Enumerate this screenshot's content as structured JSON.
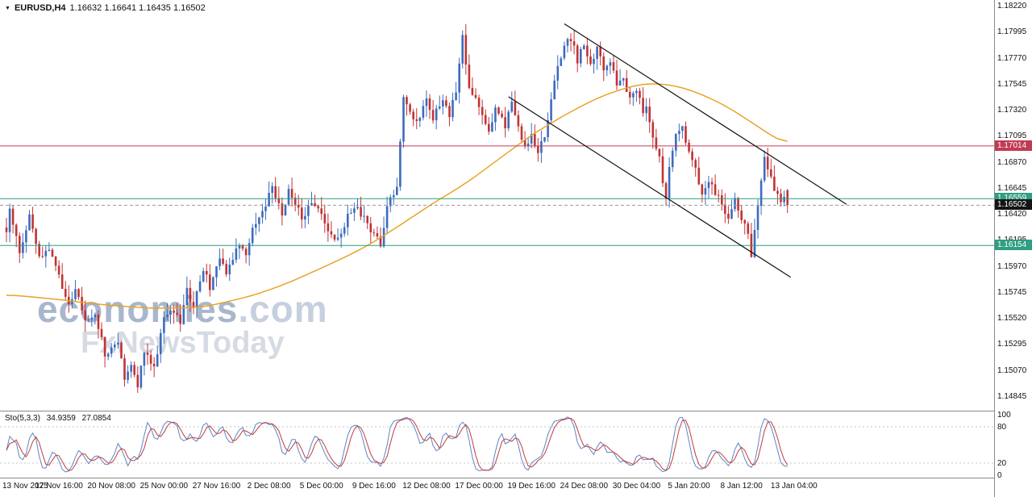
{
  "header": {
    "dropdown_icon": "▼",
    "symbol": "EURUSD,H4",
    "ohlc_text": "1.16632 1.16641 1.16435 1.16502"
  },
  "watermark": {
    "line1_main": "economies",
    "line1_suffix": ".com",
    "line2": "FxNewsToday"
  },
  "colors": {
    "bull": "#3d6bbf",
    "bear": "#c23333",
    "ma": "#e8a326",
    "resistance": "#c13b54",
    "support": "#2f9e83",
    "current_chip": "#141414",
    "current_line": "#999999",
    "trend": "#111111",
    "stoch_k": "#5c86c5",
    "stoch_d": "#c23b3b",
    "watermark_main": "#a8b7cd",
    "watermark_suffix": "#c6d0de",
    "watermark_sub": "#d6dbe3",
    "axis_text": "#111111",
    "separator": "#8a8a8a"
  },
  "chart_data": {
    "type": "candlestick",
    "symbol": "EURUSD",
    "timeframe": "H4",
    "current_ohlc": {
      "open": 1.16632,
      "high": 1.16641,
      "low": 1.16435,
      "close": 1.16502
    },
    "y_axis": {
      "price_top": 1.1822,
      "price_bottom": 1.14845,
      "ticks": [
        "1.18220",
        "1.17995",
        "1.17770",
        "1.17545",
        "1.17320",
        "1.17095",
        "1.16870",
        "1.16645",
        "1.16420",
        "1.16195",
        "1.15970",
        "1.15745",
        "1.15520",
        "1.15295",
        "1.15070",
        "1.14845"
      ]
    },
    "x_axis": {
      "candles_per_tick": 16,
      "tick_labels": [
        "13 Nov 2025",
        "17 Nov 16:00",
        "20 Nov 08:00",
        "25 Nov 00:00",
        "27 Nov 16:00",
        "2 Dec 08:00",
        "5 Dec 00:00",
        "9 Dec 16:00",
        "12 Dec 08:00",
        "17 Dec 00:00",
        "19 Dec 16:00",
        "24 Dec 08:00",
        "30 Dec 04:00",
        "5 Jan 20:00",
        "8 Jan 12:00",
        "13 Jan 04:00"
      ]
    },
    "candle_count": 239,
    "close_path_anchors": [
      [
        0,
        1.1625
      ],
      [
        1,
        1.1648
      ],
      [
        4,
        1.161
      ],
      [
        7,
        1.1642
      ],
      [
        10,
        1.1605
      ],
      [
        13,
        1.1612
      ],
      [
        16,
        1.159
      ],
      [
        19,
        1.1562
      ],
      [
        21,
        1.158
      ],
      [
        24,
        1.1548
      ],
      [
        27,
        1.1558
      ],
      [
        30,
        1.1522
      ],
      [
        34,
        1.1532
      ],
      [
        36,
        1.1498
      ],
      [
        38,
        1.1515
      ],
      [
        40,
        1.1492
      ],
      [
        42,
        1.1525
      ],
      [
        45,
        1.1508
      ],
      [
        48,
        1.1552
      ],
      [
        50,
        1.1562
      ],
      [
        53,
        1.1548
      ],
      [
        55,
        1.1578
      ],
      [
        57,
        1.1562
      ],
      [
        60,
        1.1595
      ],
      [
        62,
        1.158
      ],
      [
        65,
        1.1605
      ],
      [
        67,
        1.1592
      ],
      [
        71,
        1.1618
      ],
      [
        73,
        1.1605
      ],
      [
        75,
        1.1632
      ],
      [
        79,
        1.1652
      ],
      [
        81,
        1.1668
      ],
      [
        84,
        1.1642
      ],
      [
        86,
        1.1662
      ],
      [
        88,
        1.1648
      ],
      [
        91,
        1.1638
      ],
      [
        93,
        1.1655
      ],
      [
        96,
        1.1642
      ],
      [
        98,
        1.1628
      ],
      [
        101,
        1.162
      ],
      [
        104,
        1.1642
      ],
      [
        106,
        1.165
      ],
      [
        109,
        1.1638
      ],
      [
        112,
        1.1625
      ],
      [
        114,
        1.1618
      ],
      [
        116,
        1.1648
      ],
      [
        119,
        1.1668
      ],
      [
        121,
        1.1742
      ],
      [
        123,
        1.1732
      ],
      [
        125,
        1.1722
      ],
      [
        128,
        1.1742
      ],
      [
        130,
        1.1724
      ],
      [
        133,
        1.1744
      ],
      [
        135,
        1.1728
      ],
      [
        137,
        1.1748
      ],
      [
        139,
        1.1795
      ],
      [
        141,
        1.1755
      ],
      [
        143,
        1.1742
      ],
      [
        145,
        1.1728
      ],
      [
        147,
        1.1712
      ],
      [
        149,
        1.1735
      ],
      [
        152,
        1.1718
      ],
      [
        154,
        1.1742
      ],
      [
        156,
        1.1715
      ],
      [
        158,
        1.17
      ],
      [
        160,
        1.1712
      ],
      [
        162,
        1.1698
      ],
      [
        164,
        1.1712
      ],
      [
        165,
        1.1725
      ],
      [
        167,
        1.1758
      ],
      [
        169,
        1.1778
      ],
      [
        171,
        1.1795
      ],
      [
        173,
        1.1785
      ],
      [
        174,
        1.1775
      ],
      [
        176,
        1.179
      ],
      [
        178,
        1.1772
      ],
      [
        180,
        1.1788
      ],
      [
        182,
        1.1765
      ],
      [
        184,
        1.1775
      ],
      [
        186,
        1.1752
      ],
      [
        188,
        1.1762
      ],
      [
        190,
        1.174
      ],
      [
        192,
        1.1752
      ],
      [
        194,
        1.1728
      ],
      [
        195,
        1.1738
      ],
      [
        197,
        1.1712
      ],
      [
        199,
        1.169
      ],
      [
        201,
        1.1655
      ],
      [
        202,
        1.168
      ],
      [
        204,
        1.1712
      ],
      [
        206,
        1.1718
      ],
      [
        208,
        1.1695
      ],
      [
        210,
        1.168
      ],
      [
        212,
        1.1662
      ],
      [
        214,
        1.1672
      ],
      [
        216,
        1.1662
      ],
      [
        218,
        1.165
      ],
      [
        220,
        1.1642
      ],
      [
        222,
        1.1655
      ],
      [
        224,
        1.1638
      ],
      [
        226,
        1.1625
      ],
      [
        227,
        1.1608
      ],
      [
        229,
        1.1648
      ],
      [
        230,
        1.1672
      ],
      [
        231,
        1.1692
      ],
      [
        233,
        1.1675
      ],
      [
        234,
        1.1662
      ],
      [
        236,
        1.1652
      ],
      [
        237,
        1.1658
      ],
      [
        238,
        1.16502
      ]
    ],
    "ma_anchors": [
      [
        0,
        1.1573
      ],
      [
        15,
        1.1569
      ],
      [
        30,
        1.1564
      ],
      [
        45,
        1.1561
      ],
      [
        60,
        1.1562
      ],
      [
        75,
        1.1572
      ],
      [
        85,
        1.1582
      ],
      [
        100,
        1.1601
      ],
      [
        110,
        1.1615
      ],
      [
        120,
        1.1633
      ],
      [
        130,
        1.1652
      ],
      [
        140,
        1.1669
      ],
      [
        150,
        1.169
      ],
      [
        160,
        1.1711
      ],
      [
        170,
        1.1728
      ],
      [
        180,
        1.1743
      ],
      [
        190,
        1.1753
      ],
      [
        197,
        1.1756
      ],
      [
        205,
        1.1753
      ],
      [
        212,
        1.1746
      ],
      [
        220,
        1.1735
      ],
      [
        228,
        1.172
      ],
      [
        234,
        1.1709
      ],
      [
        238,
        1.1701
      ]
    ],
    "levels": [
      {
        "price": 1.17014,
        "label": "1.17014",
        "role": "resistance"
      },
      {
        "price": 1.16559,
        "label": "1.16559",
        "role": "support"
      },
      {
        "price": 1.16154,
        "label": "1.16154",
        "role": "support"
      }
    ],
    "current_price": {
      "price": 1.16502,
      "label": "1.16502"
    },
    "trend_lines": [
      {
        "from": [
          170,
          1.1807
        ],
        "to": [
          256,
          1.1651
        ]
      },
      {
        "from": [
          153,
          1.1744
        ],
        "to": [
          239,
          1.1588
        ]
      }
    ],
    "stochastic": {
      "name": "Sto(5,3,3)",
      "value_k": "34.9359",
      "value_d": "27.0854",
      "params": [
        5,
        3,
        3
      ],
      "axis_labels": [
        "100",
        "80",
        "20",
        "0"
      ],
      "guide_levels": [
        80,
        20
      ],
      "range": [
        0,
        100
      ]
    }
  }
}
